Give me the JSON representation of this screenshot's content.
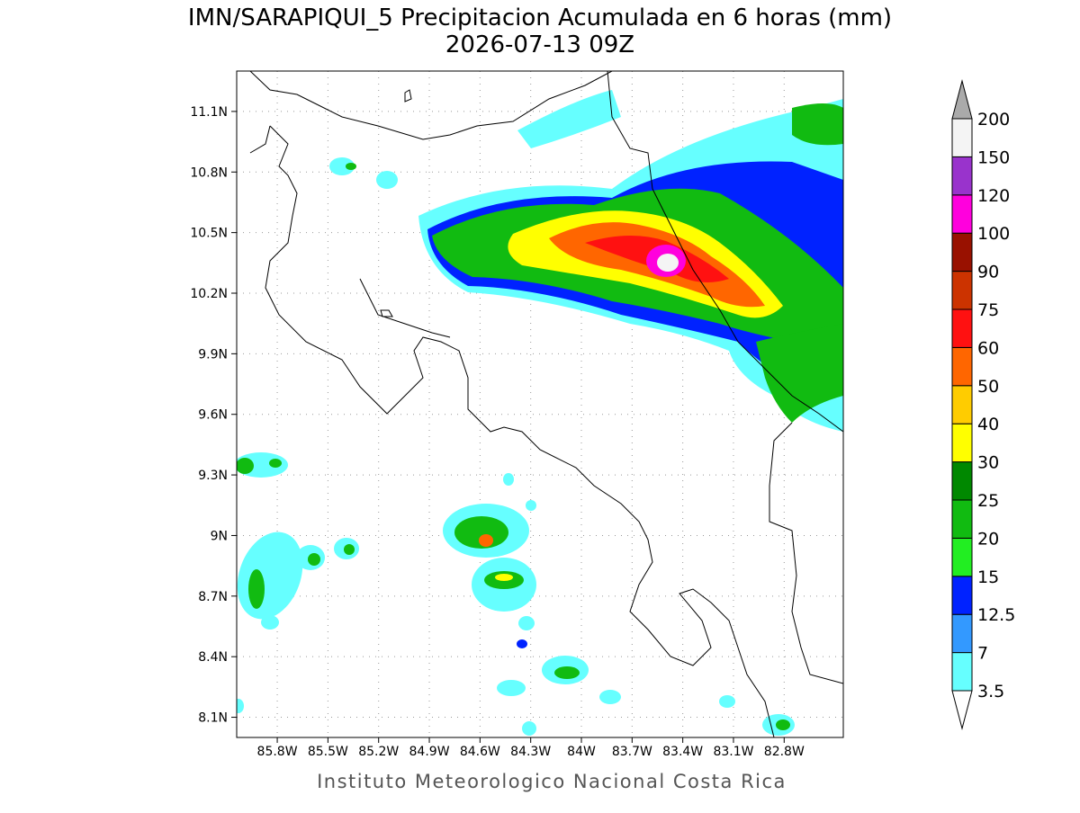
{
  "map": {
    "title": "IMN/SARAPIQUI_5 Precipitacion Acumulada en 6 horas (mm)",
    "subtitle": "2026-07-13 09Z",
    "footer": "Instituto Meteorologico Nacional Costa Rica",
    "xlim": [
      -86.04,
      -82.45
    ],
    "ylim": [
      8.0,
      11.3
    ],
    "xticks": [
      {
        "value": -85.8,
        "label": "85.8W"
      },
      {
        "value": -85.5,
        "label": "85.5W"
      },
      {
        "value": -85.2,
        "label": "85.2W"
      },
      {
        "value": -84.9,
        "label": "84.9W"
      },
      {
        "value": -84.6,
        "label": "84.6W"
      },
      {
        "value": -84.3,
        "label": "84.3W"
      },
      {
        "value": -84.0,
        "label": "84W"
      },
      {
        "value": -83.7,
        "label": "83.7W"
      },
      {
        "value": -83.4,
        "label": "83.4W"
      },
      {
        "value": -83.1,
        "label": "83.1W"
      },
      {
        "value": -82.8,
        "label": "82.8W"
      }
    ],
    "yticks": [
      {
        "value": 8.1,
        "label": "8.1N"
      },
      {
        "value": 8.4,
        "label": "8.4N"
      },
      {
        "value": 8.7,
        "label": "8.7N"
      },
      {
        "value": 9.0,
        "label": "9N"
      },
      {
        "value": 9.3,
        "label": "9.3N"
      },
      {
        "value": 9.6,
        "label": "9.6N"
      },
      {
        "value": 9.9,
        "label": "9.9N"
      },
      {
        "value": 10.2,
        "label": "10.2N"
      },
      {
        "value": 10.5,
        "label": "10.5N"
      },
      {
        "value": 10.8,
        "label": "10.8N"
      },
      {
        "value": 11.1,
        "label": "11.1N"
      }
    ],
    "grid": true,
    "colorbar": {
      "levels": [
        3.5,
        7,
        12.5,
        15,
        20,
        25,
        30,
        40,
        50,
        60,
        75,
        90,
        100,
        120,
        150,
        200
      ],
      "colors": [
        "#66ffff",
        "#3399ff",
        "#0022ff",
        "#22ee22",
        "#11bb11",
        "#008800",
        "#ffff00",
        "#ffcc00",
        "#ff6600",
        "#ff1111",
        "#cc3300",
        "#991100",
        "#ff00dd",
        "#9933cc",
        "#f4f4f4"
      ],
      "under_color": "#ffffff",
      "over_color": "#aaaaaa"
    }
  }
}
